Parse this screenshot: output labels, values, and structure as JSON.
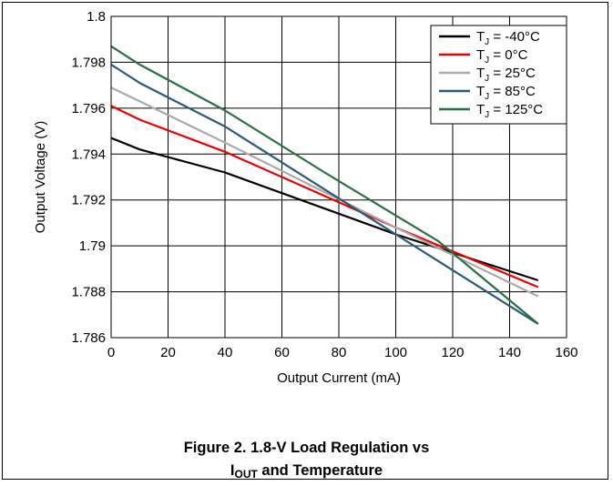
{
  "chart_data": {
    "type": "line",
    "title": "",
    "xlabel": "Output Current (mA)",
    "ylabel": "Output Voltage (V)",
    "xlim": [
      0,
      160
    ],
    "ylim": [
      1.786,
      1.8
    ],
    "x_ticks": [
      0,
      20,
      40,
      60,
      80,
      100,
      120,
      140,
      160
    ],
    "y_ticks": [
      1.786,
      1.788,
      1.79,
      1.792,
      1.794,
      1.796,
      1.798,
      1.8
    ],
    "y_tick_labels": [
      "1.786",
      "1.788",
      "1.79",
      "1.792",
      "1.794",
      "1.796",
      "1.798",
      "1.8"
    ],
    "grid": true,
    "legend_position": "top-right",
    "series": [
      {
        "name": "T_J = -40°C",
        "label_main": "T",
        "label_sub": "J",
        "label_rest": " = -40°C",
        "color": "#000000",
        "x": [
          0,
          10,
          40,
          100,
          150
        ],
        "y": [
          1.7947,
          1.7942,
          1.7932,
          1.7905,
          1.7885
        ]
      },
      {
        "name": "T_J = 0°C",
        "label_main": "T",
        "label_sub": "J",
        "label_rest": " = 0°C",
        "color": "#ee0000",
        "x": [
          0,
          10,
          40,
          100,
          150
        ],
        "y": [
          1.7961,
          1.7955,
          1.7941,
          1.7908,
          1.7882
        ]
      },
      {
        "name": "T_J = 25°C",
        "label_main": "T",
        "label_sub": "J",
        "label_rest": " = 25°C",
        "color": "#aaaaaa",
        "x": [
          0,
          10,
          40,
          100,
          150
        ],
        "y": [
          1.7969,
          1.7963,
          1.7945,
          1.7908,
          1.7878
        ]
      },
      {
        "name": "T_J = 85°C",
        "label_main": "T",
        "label_sub": "J",
        "label_rest": " = 85°C",
        "color": "#2a5a7a",
        "x": [
          0,
          10,
          40,
          100,
          150
        ],
        "y": [
          1.7979,
          1.7971,
          1.7952,
          1.7905,
          1.7866
        ]
      },
      {
        "name": "T_J = 125°C",
        "label_main": "T",
        "label_sub": "J",
        "label_rest": " = 125°C",
        "color": "#2a6e44",
        "x": [
          0,
          10,
          40,
          75,
          115,
          150
        ],
        "y": [
          1.7987,
          1.7979,
          1.7959,
          1.7932,
          1.7902,
          1.7866
        ]
      }
    ]
  },
  "caption": {
    "line1": "Figure 2. 1.8-V Load Regulation vs",
    "line2_main": "I",
    "line2_sub": "OUT",
    "line2_rest": " and Temperature"
  }
}
